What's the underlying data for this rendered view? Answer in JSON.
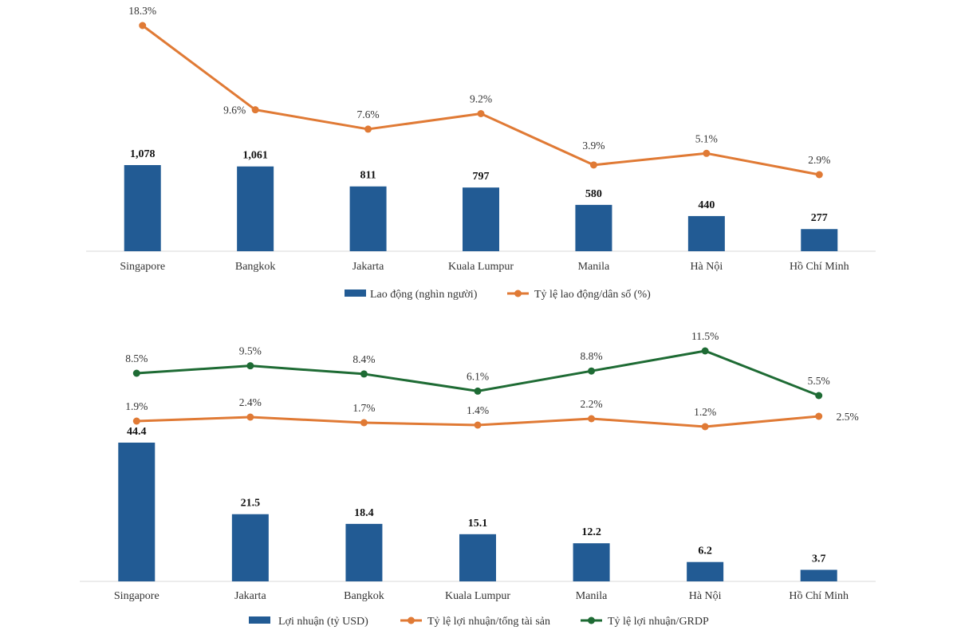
{
  "chart_data": [
    {
      "type": "bar",
      "categories": [
        "Singapore",
        "Bangkok",
        "Jakarta",
        "Kuala Lumpur",
        "Manila",
        "Hà Nội",
        "Hồ Chí Minh"
      ],
      "series": [
        {
          "name": "Lao động (nghìn người)",
          "kind": "bar",
          "color": "#225b94",
          "values": [
            1078,
            1061,
            811,
            797,
            580,
            440,
            277
          ],
          "labels": [
            "1,078",
            "1,061",
            "811",
            "797",
            "580",
            "440",
            "277"
          ]
        },
        {
          "name": "Tỷ lệ lao động/dân số (%)",
          "kind": "line",
          "color": "#e07a35",
          "values": [
            18.3,
            9.6,
            7.6,
            9.2,
            3.9,
            5.1,
            2.9
          ],
          "labels": [
            "18.3%",
            "9.6%",
            "7.6%",
            "9.2%",
            "3.9%",
            "5.1%",
            "2.9%"
          ]
        }
      ],
      "legend": "bottom",
      "grid": false
    },
    {
      "type": "bar",
      "categories": [
        "Singapore",
        "Jakarta",
        "Bangkok",
        "Kuala Lumpur",
        "Manila",
        "Hà Nội",
        "Hồ Chí Minh"
      ],
      "series": [
        {
          "name": "Lợi nhuận (tỷ USD)",
          "kind": "bar",
          "color": "#225b94",
          "values": [
            44.4,
            21.5,
            18.4,
            15.1,
            12.2,
            6.2,
            3.7
          ],
          "labels": [
            "44.4",
            "21.5",
            "18.4",
            "15.1",
            "12.2",
            "6.2",
            "3.7"
          ]
        },
        {
          "name": "Tỷ lệ lợi nhuận/tổng tài sản",
          "kind": "line",
          "color": "#e07a35",
          "values": [
            1.9,
            2.4,
            1.7,
            1.4,
            2.2,
            1.2,
            2.5
          ],
          "labels": [
            "1.9%",
            "2.4%",
            "1.7%",
            "1.4%",
            "2.2%",
            "1.2%",
            "2.5%"
          ]
        },
        {
          "name": "Tỷ lệ lợi nhuận/GRDP",
          "kind": "line",
          "color": "#1e6b34",
          "values": [
            8.5,
            9.5,
            8.4,
            6.1,
            8.8,
            11.5,
            5.5
          ],
          "labels": [
            "8.5%",
            "9.5%",
            "8.4%",
            "6.1%",
            "8.8%",
            "11.5%",
            "5.5%"
          ]
        }
      ],
      "legend": "bottom",
      "grid": false
    }
  ]
}
